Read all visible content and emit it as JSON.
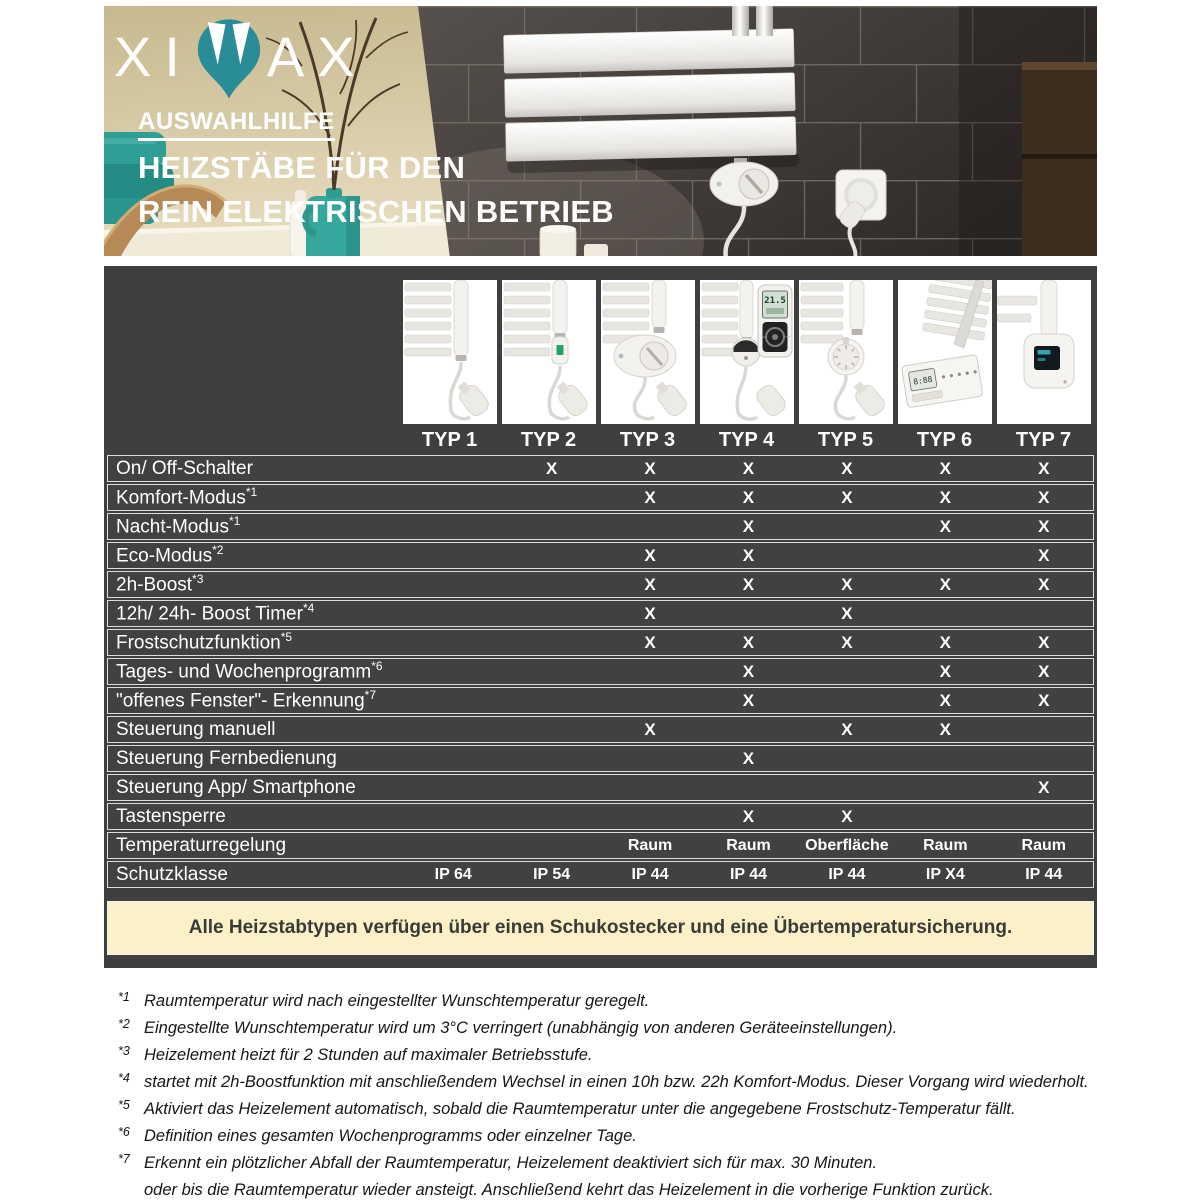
{
  "brand": {
    "logo_left": "XI",
    "logo_right": "AX",
    "logo_symbol": "teal-m-drop",
    "accent_teal": "#2a8c96"
  },
  "header": {
    "eyebrow": "AUSWAHLHILFE",
    "title_line1": "HEIZSTÄBE FÜR DEN",
    "title_line2": "REIN ELEKTRISCHEN BETRIEB"
  },
  "table": {
    "products": [
      {
        "label": "TYP 1",
        "image": "heater-plain-cable"
      },
      {
        "label": "TYP 2",
        "image": "heater-inline-switch"
      },
      {
        "label": "TYP 3",
        "image": "heater-oval-dial-controller"
      },
      {
        "label": "TYP 4",
        "image": "heater-knob-with-remote-control"
      },
      {
        "label": "TYP 5",
        "image": "heater-round-thermostat-dial"
      },
      {
        "label": "TYP 6",
        "image": "heater-control-panel"
      },
      {
        "label": "TYP 7",
        "image": "heater-display-box"
      }
    ],
    "rows": [
      {
        "label": "On/ Off-Schalter",
        "sup": "",
        "values": [
          "",
          "X",
          "X",
          "X",
          "X",
          "X",
          "X"
        ]
      },
      {
        "label": "Komfort-Modus",
        "sup": "*1",
        "values": [
          "",
          "",
          "X",
          "X",
          "X",
          "X",
          "X"
        ]
      },
      {
        "label": "Nacht-Modus",
        "sup": "*1",
        "values": [
          "",
          "",
          "",
          "X",
          "",
          "X",
          "X"
        ]
      },
      {
        "label": "Eco-Modus",
        "sup": "*2",
        "values": [
          "",
          "",
          "X",
          "X",
          "",
          "",
          "X"
        ]
      },
      {
        "label": "2h-Boost",
        "sup": "*3",
        "values": [
          "",
          "",
          "X",
          "X",
          "X",
          "X",
          "X"
        ]
      },
      {
        "label": "12h/ 24h- Boost Timer",
        "sup": "*4",
        "values": [
          "",
          "",
          "X",
          "",
          "X",
          "",
          ""
        ]
      },
      {
        "label": "Frostschutzfunktion",
        "sup": "*5",
        "values": [
          "",
          "",
          "X",
          "X",
          "X",
          "X",
          "X"
        ]
      },
      {
        "label": "Tages- und Wochenprogramm",
        "sup": "*6",
        "values": [
          "",
          "",
          "",
          "X",
          "",
          "X",
          "X"
        ]
      },
      {
        "label": "\"offenes Fenster\"- Erkennung",
        "sup": "*7",
        "values": [
          "",
          "",
          "",
          "X",
          "",
          "X",
          "X"
        ]
      },
      {
        "label": "Steuerung manuell",
        "sup": "",
        "values": [
          "",
          "",
          "X",
          "",
          "X",
          "X",
          ""
        ]
      },
      {
        "label": "Steuerung Fernbedienung",
        "sup": "",
        "values": [
          "",
          "",
          "",
          "X",
          "",
          "",
          ""
        ]
      },
      {
        "label": "Steuerung App/ Smartphone",
        "sup": "",
        "values": [
          "",
          "",
          "",
          "",
          "",
          "",
          "X"
        ]
      },
      {
        "label": "Tastensperre",
        "sup": "",
        "values": [
          "",
          "",
          "",
          "X",
          "X",
          "",
          ""
        ]
      },
      {
        "label": "Temperaturregelung",
        "sup": "",
        "values": [
          "",
          "",
          "Raum",
          "Raum",
          "Oberfläche",
          "Raum",
          "Raum"
        ]
      },
      {
        "label": "Schutzklasse",
        "sup": "",
        "values": [
          "IP 64",
          "IP 54",
          "IP 44",
          "IP 44",
          "IP 44",
          "IP X4",
          "IP 44"
        ]
      }
    ],
    "note": "Alle Heizstabtypen verfügen über einen Schukostecker und eine Übertemperatursicherung."
  },
  "footnotes": [
    {
      "marker": "*1",
      "lines": [
        "Raumtemperatur wird nach eingestellter Wunschtemperatur geregelt."
      ]
    },
    {
      "marker": "*2",
      "lines": [
        "Eingestellte Wunschtemperatur wird um 3°C verringert (unabhängig von anderen Geräteeinstellungen)."
      ]
    },
    {
      "marker": "*3",
      "lines": [
        "Heizelement heizt für 2 Stunden auf maximaler Betriebsstufe."
      ]
    },
    {
      "marker": "*4",
      "lines": [
        "startet mit 2h-Boostfunktion mit anschließendem Wechsel in einen 10h bzw. 22h Komfort-Modus. Dieser Vorgang wird wiederholt."
      ]
    },
    {
      "marker": "*5",
      "lines": [
        "Aktiviert das Heizelement automatisch, sobald die Raumtemperatur unter die angegebene Frostschutz-Temperatur fällt."
      ]
    },
    {
      "marker": "*6",
      "lines": [
        "Definition eines gesamten Wochenprogramms oder einzelner Tage."
      ]
    },
    {
      "marker": "*7",
      "lines": [
        "Erkennt ein plötzlicher Abfall der Raumtemperatur, Heizelement deaktiviert sich für max. 30 Minuten.",
        "oder bis die Raumtemperatur wieder ansteigt. Anschließend kehrt das Heizelement in die vorherige Funktion zurück."
      ]
    }
  ]
}
